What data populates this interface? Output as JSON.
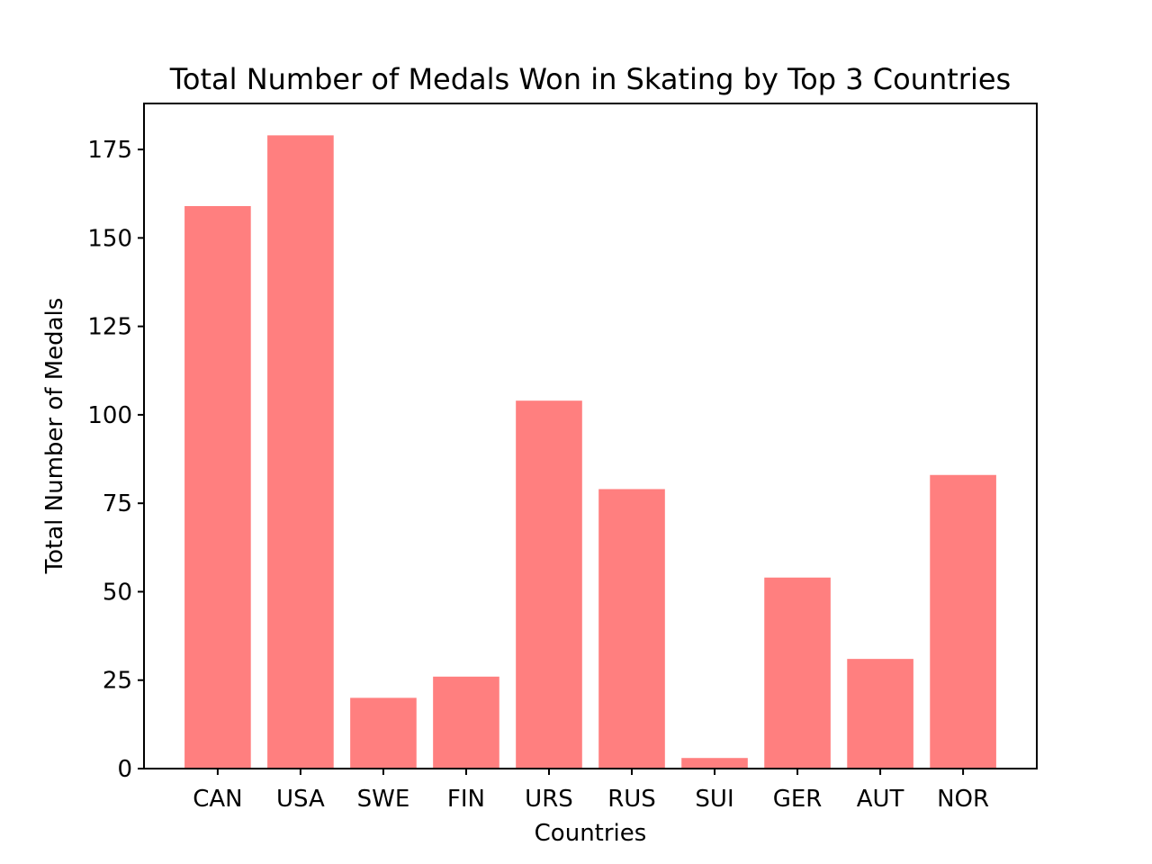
{
  "chart_data": {
    "type": "bar",
    "title": "Total Number of Medals Won in Skating by Top 3 Countries",
    "xlabel": "Countries",
    "ylabel": "Total Number of Medals",
    "categories": [
      "CAN",
      "USA",
      "SWE",
      "FIN",
      "URS",
      "RUS",
      "SUI",
      "GER",
      "AUT",
      "NOR"
    ],
    "values": [
      159,
      179,
      20,
      26,
      104,
      79,
      3,
      54,
      31,
      83
    ],
    "ylim": [
      0,
      188
    ],
    "yticks": [
      0,
      25,
      50,
      75,
      100,
      125,
      150,
      175
    ],
    "bar_color": "#ff7f7f",
    "grid": false,
    "legend": "none"
  }
}
